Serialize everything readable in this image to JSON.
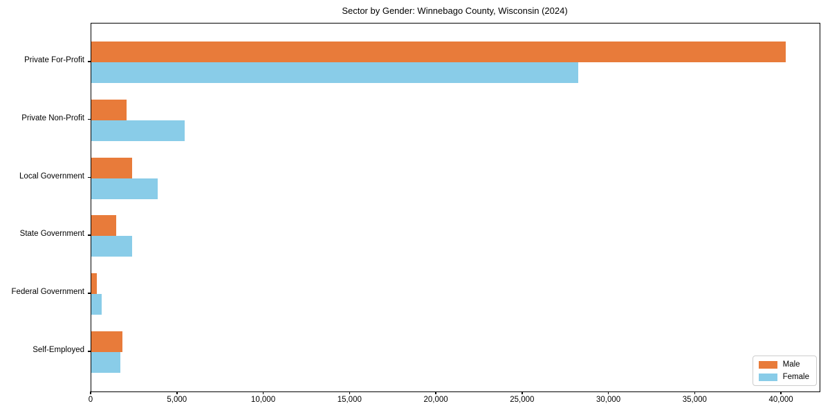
{
  "title": "Sector by Gender: Winnebago County, Wisconsin (2024)",
  "chart_data": {
    "type": "bar",
    "orientation": "horizontal",
    "title": "Sector by Gender: Winnebago County, Wisconsin (2024)",
    "categories": [
      "Private For-Profit",
      "Private Non-Profit",
      "Local Government",
      "State Government",
      "Federal Government",
      "Self-Employed"
    ],
    "series": [
      {
        "name": "Male",
        "color": "#e87b3a",
        "values": [
          40250,
          2050,
          2350,
          1450,
          320,
          1800
        ]
      },
      {
        "name": "Female",
        "color": "#89cce8",
        "values": [
          28200,
          5400,
          3850,
          2350,
          600,
          1700
        ]
      }
    ],
    "xlabel": "",
    "ylabel": "",
    "xlim": [
      0,
      42200
    ],
    "x_ticks": [
      0,
      5000,
      10000,
      15000,
      20000,
      25000,
      30000,
      35000,
      40000
    ],
    "x_tick_labels": [
      "0",
      "5,000",
      "10,000",
      "15,000",
      "20,000",
      "25,000",
      "30,000",
      "35,000",
      "40,000"
    ],
    "grid": false,
    "legend_position": "lower right",
    "spines": "full-box"
  }
}
